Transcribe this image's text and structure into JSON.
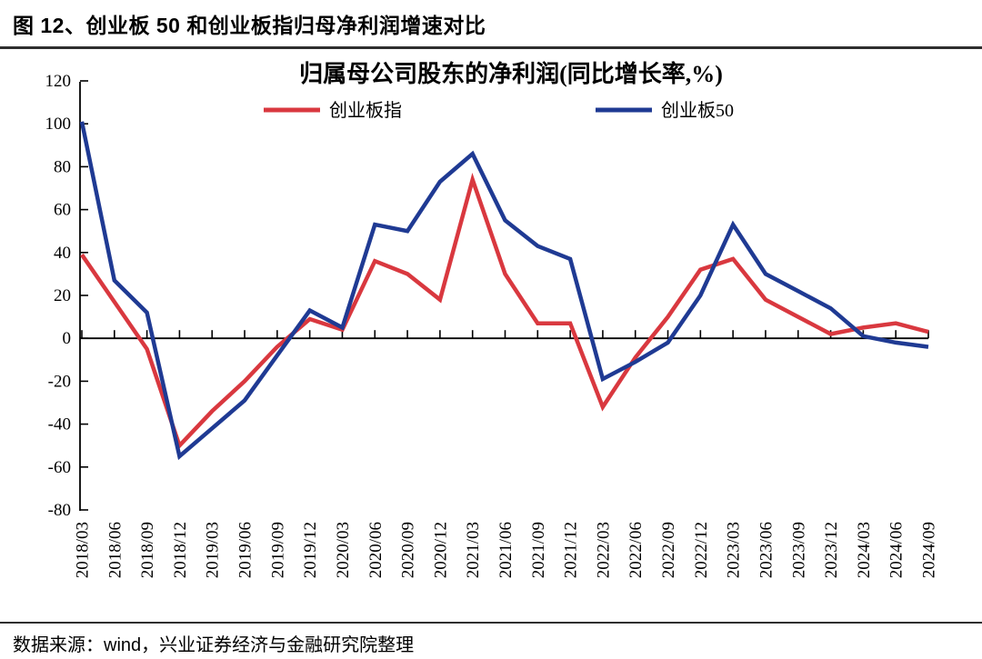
{
  "header": {
    "title": "图 12、创业板 50 和创业板指归母净利润增速对比"
  },
  "footer": {
    "source": "数据来源：wind，兴业证券经济与金融研究院整理"
  },
  "chart_data": {
    "type": "line",
    "title": "归属母公司股东的净利润(同比增长率,%)",
    "categories": [
      "2018/03",
      "2018/06",
      "2018/09",
      "2018/12",
      "2019/03",
      "2019/06",
      "2019/09",
      "2019/12",
      "2020/03",
      "2020/06",
      "2020/09",
      "2020/12",
      "2021/03",
      "2021/06",
      "2021/09",
      "2021/12",
      "2022/03",
      "2022/06",
      "2022/09",
      "2022/12",
      "2023/03",
      "2023/06",
      "2023/09",
      "2023/12",
      "2024/03",
      "2024/06",
      "2024/09"
    ],
    "series": [
      {
        "name": "创业板指",
        "color": "#d9383f",
        "values": [
          39,
          17,
          -5,
          -50,
          -34,
          -20,
          -4,
          9,
          4,
          36,
          30,
          18,
          74,
          30,
          7,
          7,
          -32,
          -9,
          10,
          32,
          37,
          18,
          10,
          2,
          5,
          7,
          3
        ]
      },
      {
        "name": "创业板50",
        "color": "#1f3a93",
        "values": [
          101,
          27,
          12,
          -55,
          -42,
          -29,
          -8,
          13,
          5,
          53,
          50,
          73,
          86,
          55,
          43,
          37,
          -19,
          -11,
          -2,
          20,
          53,
          30,
          22,
          14,
          1,
          -2,
          -4
        ]
      }
    ],
    "ylim": [
      -80,
      120
    ],
    "ytick_step": 20,
    "xlabel": "",
    "ylabel": "",
    "grid": false,
    "legend_position": "top",
    "axis_color": "#000000"
  }
}
